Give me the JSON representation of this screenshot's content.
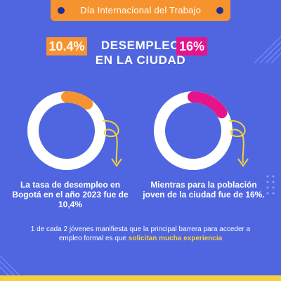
{
  "banner": {
    "text": "Día Internacional del Trabajo"
  },
  "title": {
    "line1": "DESEMPLEO",
    "line2": "EN LA CIUDAD"
  },
  "chart_data": [
    {
      "type": "pie",
      "values": [
        10.4,
        89.6
      ],
      "value_label": "10.4%",
      "description": "La tasa de desempleo en Bogotá en el año 2023 fue de 10,4%",
      "highlight_color": "#f7932e",
      "ring_color": "#ffffff"
    },
    {
      "type": "pie",
      "values": [
        16,
        84
      ],
      "value_label": "16%",
      "description": "Mientras para la población joven de la ciudad fue de 16%.",
      "highlight_color": "#e6148a",
      "ring_color": "#ffffff"
    }
  ],
  "note": {
    "text": "1 de cada 2 jóvenes manifiesta que la principal barrera para acceder a empleo formal es que",
    "highlight": "solicitan mucha experiencia"
  },
  "colors": {
    "background": "#4f66e0",
    "banner": "#f7932e",
    "accent_yellow": "#f6d03a",
    "arrow": "#f6d03a"
  }
}
